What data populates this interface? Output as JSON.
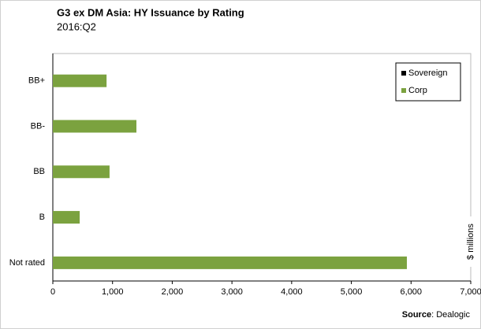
{
  "chart_data": {
    "type": "bar",
    "orientation": "horizontal",
    "stacked": true,
    "title": "G3 ex DM Asia: HY Issuance by Rating",
    "subtitle": "2016:Q2",
    "x_label": "$ millions",
    "source_label": "Source",
    "source": ": Dealogic",
    "categories": [
      "BB+",
      "BB-",
      "BB",
      "B",
      "Not rated"
    ],
    "series": [
      {
        "name": "Sovereign",
        "color": "#000000",
        "values": [
          0,
          0,
          0,
          0,
          0
        ]
      },
      {
        "name": "Corp",
        "color": "#7ba23f",
        "values": [
          900,
          1400,
          950,
          450,
          5930
        ]
      }
    ],
    "xlim": [
      0,
      7000
    ],
    "xticks": [
      0,
      {
        "value": 1000,
        "label": "1,000"
      },
      {
        "value": 2000,
        "label": "2,000"
      },
      {
        "value": 3000,
        "label": "3,000"
      },
      {
        "value": 4000,
        "label": "4,000"
      },
      {
        "value": 5000,
        "label": "5,000"
      },
      {
        "value": 6000,
        "label": "6,000"
      },
      {
        "value": 7000,
        "label": "7,000"
      }
    ],
    "legend": "top-right"
  }
}
